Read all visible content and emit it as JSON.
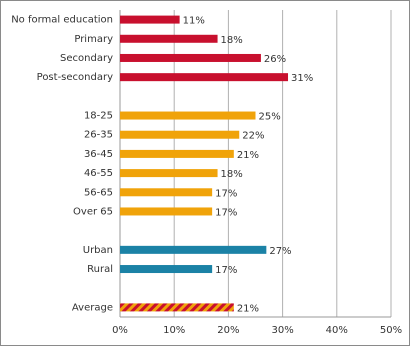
{
  "chart_data": {
    "type": "hbar",
    "categories": [
      "No formal education",
      "Primary",
      "Secondary",
      "Post-secondary",
      null,
      "18-25",
      "26-35",
      "36-45",
      "46-55",
      "56-65",
      "Over 65",
      null,
      "Urban",
      "Rural",
      null,
      "Average"
    ],
    "values": [
      11,
      18,
      26,
      31,
      null,
      25,
      22,
      21,
      18,
      17,
      17,
      null,
      27,
      17,
      null,
      21
    ],
    "value_labels": [
      "11%",
      "18%",
      "26%",
      "31%",
      null,
      "25%",
      "22%",
      "21%",
      "18%",
      "17%",
      "17%",
      null,
      "27%",
      "17%",
      null,
      "21%"
    ],
    "colors": [
      "#c8102e",
      "#c8102e",
      "#c8102e",
      "#c8102e",
      null,
      "#f0a30a",
      "#f0a30a",
      "#f0a30a",
      "#f0a30a",
      "#f0a30a",
      "#f0a30a",
      null,
      "#1b82a6",
      "#1b82a6",
      null,
      [
        "#c8102e",
        "#f0a30a"
      ]
    ],
    "xlim": [
      0,
      50
    ],
    "xticks": [
      {
        "value": 0,
        "label": "0%"
      },
      {
        "value": 10,
        "label": "10%"
      },
      {
        "value": 20,
        "label": "20%"
      },
      {
        "value": 30,
        "label": "30%"
      },
      {
        "value": 40,
        "label": "40%"
      },
      {
        "value": 50,
        "label": "50%"
      }
    ],
    "grid": true
  }
}
